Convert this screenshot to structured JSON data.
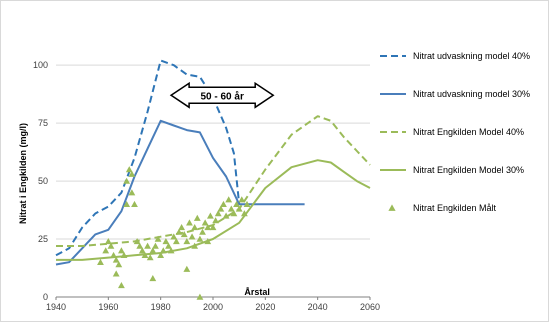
{
  "chart_data": {
    "type": "line",
    "title": "",
    "xlabel": "Årstal",
    "ylabel": "Nitrat i Engkilden (mg/l)",
    "xlim": [
      1940,
      2060
    ],
    "ylim": [
      0,
      110
    ],
    "xticks": [
      "1940",
      "1960",
      "1980",
      "2000",
      "2020",
      "2040",
      "2060"
    ],
    "yticks": [
      "0",
      "25",
      "50",
      "75",
      "100"
    ],
    "annotation": "50 - 60 år",
    "annotation_x_range": [
      1984,
      2023
    ],
    "annotation_y": 87,
    "grid": "horizontal",
    "legend_position": "right",
    "series": [
      {
        "name": "Nitrat udvaskning model 40%",
        "color": "#2e75b6",
        "style": "dashed",
        "points": [
          [
            1940,
            18
          ],
          [
            1945,
            21
          ],
          [
            1950,
            30
          ],
          [
            1955,
            36
          ],
          [
            1960,
            39
          ],
          [
            1965,
            45
          ],
          [
            1970,
            60
          ],
          [
            1975,
            80
          ],
          [
            1980,
            102
          ],
          [
            1985,
            100
          ],
          [
            1990,
            96
          ],
          [
            1995,
            95
          ],
          [
            2000,
            86
          ],
          [
            2005,
            73
          ],
          [
            2008,
            62
          ],
          [
            2010,
            40
          ]
        ]
      },
      {
        "name": "Nitrat udvaskning model 30%",
        "color": "#4a7ebb",
        "style": "solid",
        "points": [
          [
            1940,
            14
          ],
          [
            1945,
            15
          ],
          [
            1950,
            21
          ],
          [
            1955,
            27
          ],
          [
            1960,
            29
          ],
          [
            1965,
            37
          ],
          [
            1970,
            52
          ],
          [
            1975,
            64
          ],
          [
            1980,
            76
          ],
          [
            1985,
            74
          ],
          [
            1990,
            72
          ],
          [
            1995,
            71
          ],
          [
            2000,
            60
          ],
          [
            2005,
            52
          ],
          [
            2010,
            40
          ],
          [
            2020,
            40
          ],
          [
            2035,
            40
          ]
        ]
      },
      {
        "name": "Nitrat Engkilden Model 40%",
        "color": "#9bbb59",
        "style": "dashed",
        "points": [
          [
            1940,
            22
          ],
          [
            1950,
            22
          ],
          [
            1960,
            23
          ],
          [
            1970,
            24
          ],
          [
            1980,
            26
          ],
          [
            1990,
            28
          ],
          [
            2000,
            31
          ],
          [
            2010,
            38
          ],
          [
            2020,
            55
          ],
          [
            2030,
            70
          ],
          [
            2040,
            78
          ],
          [
            2045,
            76
          ],
          [
            2050,
            69
          ],
          [
            2055,
            63
          ],
          [
            2060,
            57
          ]
        ]
      },
      {
        "name": "Nitrat Engkilden Model 30%",
        "color": "#9bbb59",
        "style": "solid",
        "points": [
          [
            1940,
            16
          ],
          [
            1950,
            16
          ],
          [
            1960,
            17
          ],
          [
            1970,
            18
          ],
          [
            1980,
            19
          ],
          [
            1990,
            21
          ],
          [
            2000,
            25
          ],
          [
            2010,
            32
          ],
          [
            2020,
            47
          ],
          [
            2030,
            56
          ],
          [
            2040,
            59
          ],
          [
            2045,
            58
          ],
          [
            2050,
            54
          ],
          [
            2055,
            50
          ],
          [
            2060,
            47
          ]
        ]
      },
      {
        "name": "Nitrat Engkilden Målt",
        "color": "#9bbb59",
        "style": "markers",
        "points": [
          [
            1957,
            15
          ],
          [
            1959,
            20
          ],
          [
            1960,
            24
          ],
          [
            1961,
            22
          ],
          [
            1962,
            18
          ],
          [
            1963,
            16
          ],
          [
            1963,
            10
          ],
          [
            1964,
            14
          ],
          [
            1965,
            5
          ],
          [
            1965,
            20
          ],
          [
            1966,
            18
          ],
          [
            1967,
            40
          ],
          [
            1967,
            50
          ],
          [
            1968,
            55
          ],
          [
            1969,
            53
          ],
          [
            1969,
            45
          ],
          [
            1970,
            40
          ],
          [
            1971,
            24
          ],
          [
            1972,
            22
          ],
          [
            1973,
            20
          ],
          [
            1974,
            18
          ],
          [
            1975,
            22
          ],
          [
            1976,
            17
          ],
          [
            1977,
            8
          ],
          [
            1977,
            20
          ],
          [
            1978,
            22
          ],
          [
            1979,
            25
          ],
          [
            1980,
            18
          ],
          [
            1981,
            20
          ],
          [
            1982,
            24
          ],
          [
            1983,
            22
          ],
          [
            1984,
            20
          ],
          [
            1985,
            26
          ],
          [
            1986,
            24
          ],
          [
            1987,
            28
          ],
          [
            1988,
            30
          ],
          [
            1989,
            27
          ],
          [
            1990,
            24
          ],
          [
            1990,
            12
          ],
          [
            1991,
            32
          ],
          [
            1992,
            26
          ],
          [
            1993,
            30
          ],
          [
            1993,
            22
          ],
          [
            1994,
            34
          ],
          [
            1995,
            25
          ],
          [
            1995,
            0
          ],
          [
            1996,
            28
          ],
          [
            1997,
            32
          ],
          [
            1998,
            30
          ],
          [
            1998,
            24
          ],
          [
            1999,
            35
          ],
          [
            2000,
            30
          ],
          [
            2001,
            33
          ],
          [
            2002,
            36
          ],
          [
            2003,
            38
          ],
          [
            2004,
            40
          ],
          [
            2005,
            35
          ],
          [
            2006,
            42
          ],
          [
            2007,
            38
          ],
          [
            2008,
            36
          ],
          [
            2009,
            40
          ],
          [
            2010,
            38
          ],
          [
            2011,
            42
          ],
          [
            2012,
            36
          ],
          [
            2013,
            40
          ]
        ]
      }
    ]
  }
}
